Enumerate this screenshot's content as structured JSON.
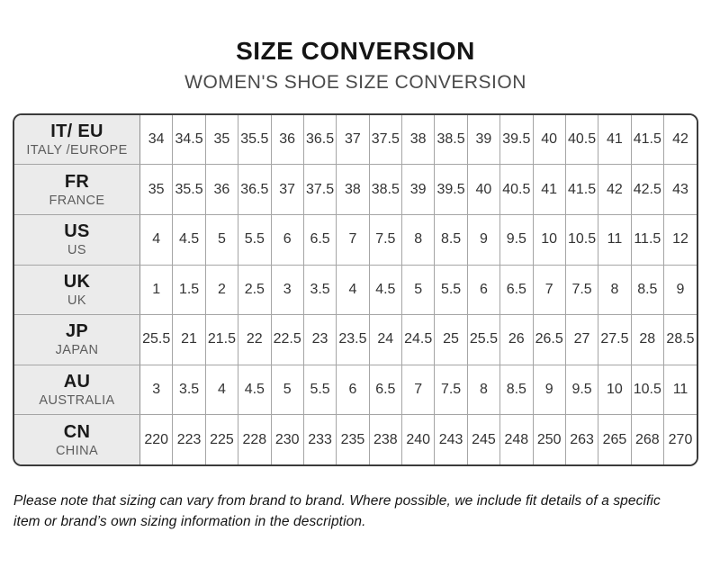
{
  "title": "SIZE CONVERSION",
  "subtitle": "WOMEN'S SHOE SIZE CONVERSION",
  "footnote": "Please note that sizing can vary from brand to brand. Where possible, we include fit details of a specific item or brand’s own sizing information in the description.",
  "colors": {
    "outer_border": "#3b3b3b",
    "grid_line": "#a5a5a5",
    "header_cell_bg": "#ebebeb",
    "title_text": "#151515",
    "subtitle_text": "#4a4a4a",
    "cell_text": "#333333"
  },
  "chart_data": {
    "type": "table",
    "title": "SIZE CONVERSION",
    "subtitle": "WOMEN'S SHOE SIZE CONVERSION",
    "rows": [
      {
        "code": "IT/ EU",
        "region": "ITALY /EUROPE",
        "sizes": [
          "34",
          "34.5",
          "35",
          "35.5",
          "36",
          "36.5",
          "37",
          "37.5",
          "38",
          "38.5",
          "39",
          "39.5",
          "40",
          "40.5",
          "41",
          "41.5",
          "42"
        ]
      },
      {
        "code": "FR",
        "region": "FRANCE",
        "sizes": [
          "35",
          "35.5",
          "36",
          "36.5",
          "37",
          "37.5",
          "38",
          "38.5",
          "39",
          "39.5",
          "40",
          "40.5",
          "41",
          "41.5",
          "42",
          "42.5",
          "43"
        ]
      },
      {
        "code": "US",
        "region": "US",
        "sizes": [
          "4",
          "4.5",
          "5",
          "5.5",
          "6",
          "6.5",
          "7",
          "7.5",
          "8",
          "8.5",
          "9",
          "9.5",
          "10",
          "10.5",
          "11",
          "11.5",
          "12"
        ]
      },
      {
        "code": "UK",
        "region": "UK",
        "sizes": [
          "1",
          "1.5",
          "2",
          "2.5",
          "3",
          "3.5",
          "4",
          "4.5",
          "5",
          "5.5",
          "6",
          "6.5",
          "7",
          "7.5",
          "8",
          "8.5",
          "9"
        ]
      },
      {
        "code": "JP",
        "region": "JAPAN",
        "sizes": [
          "25.5",
          "21",
          "21.5",
          "22",
          "22.5",
          "23",
          "23.5",
          "24",
          "24.5",
          "25",
          "25.5",
          "26",
          "26.5",
          "27",
          "27.5",
          "28",
          "28.5"
        ]
      },
      {
        "code": "AU",
        "region": "AUSTRALIA",
        "sizes": [
          "3",
          "3.5",
          "4",
          "4.5",
          "5",
          "5.5",
          "6",
          "6.5",
          "7",
          "7.5",
          "8",
          "8.5",
          "9",
          "9.5",
          "10",
          "10.5",
          "11"
        ]
      },
      {
        "code": "CN",
        "region": "CHINA",
        "sizes": [
          "220",
          "223",
          "225",
          "228",
          "230",
          "233",
          "235",
          "238",
          "240",
          "243",
          "245",
          "248",
          "250",
          "263",
          "265",
          "268",
          "270"
        ]
      }
    ]
  }
}
